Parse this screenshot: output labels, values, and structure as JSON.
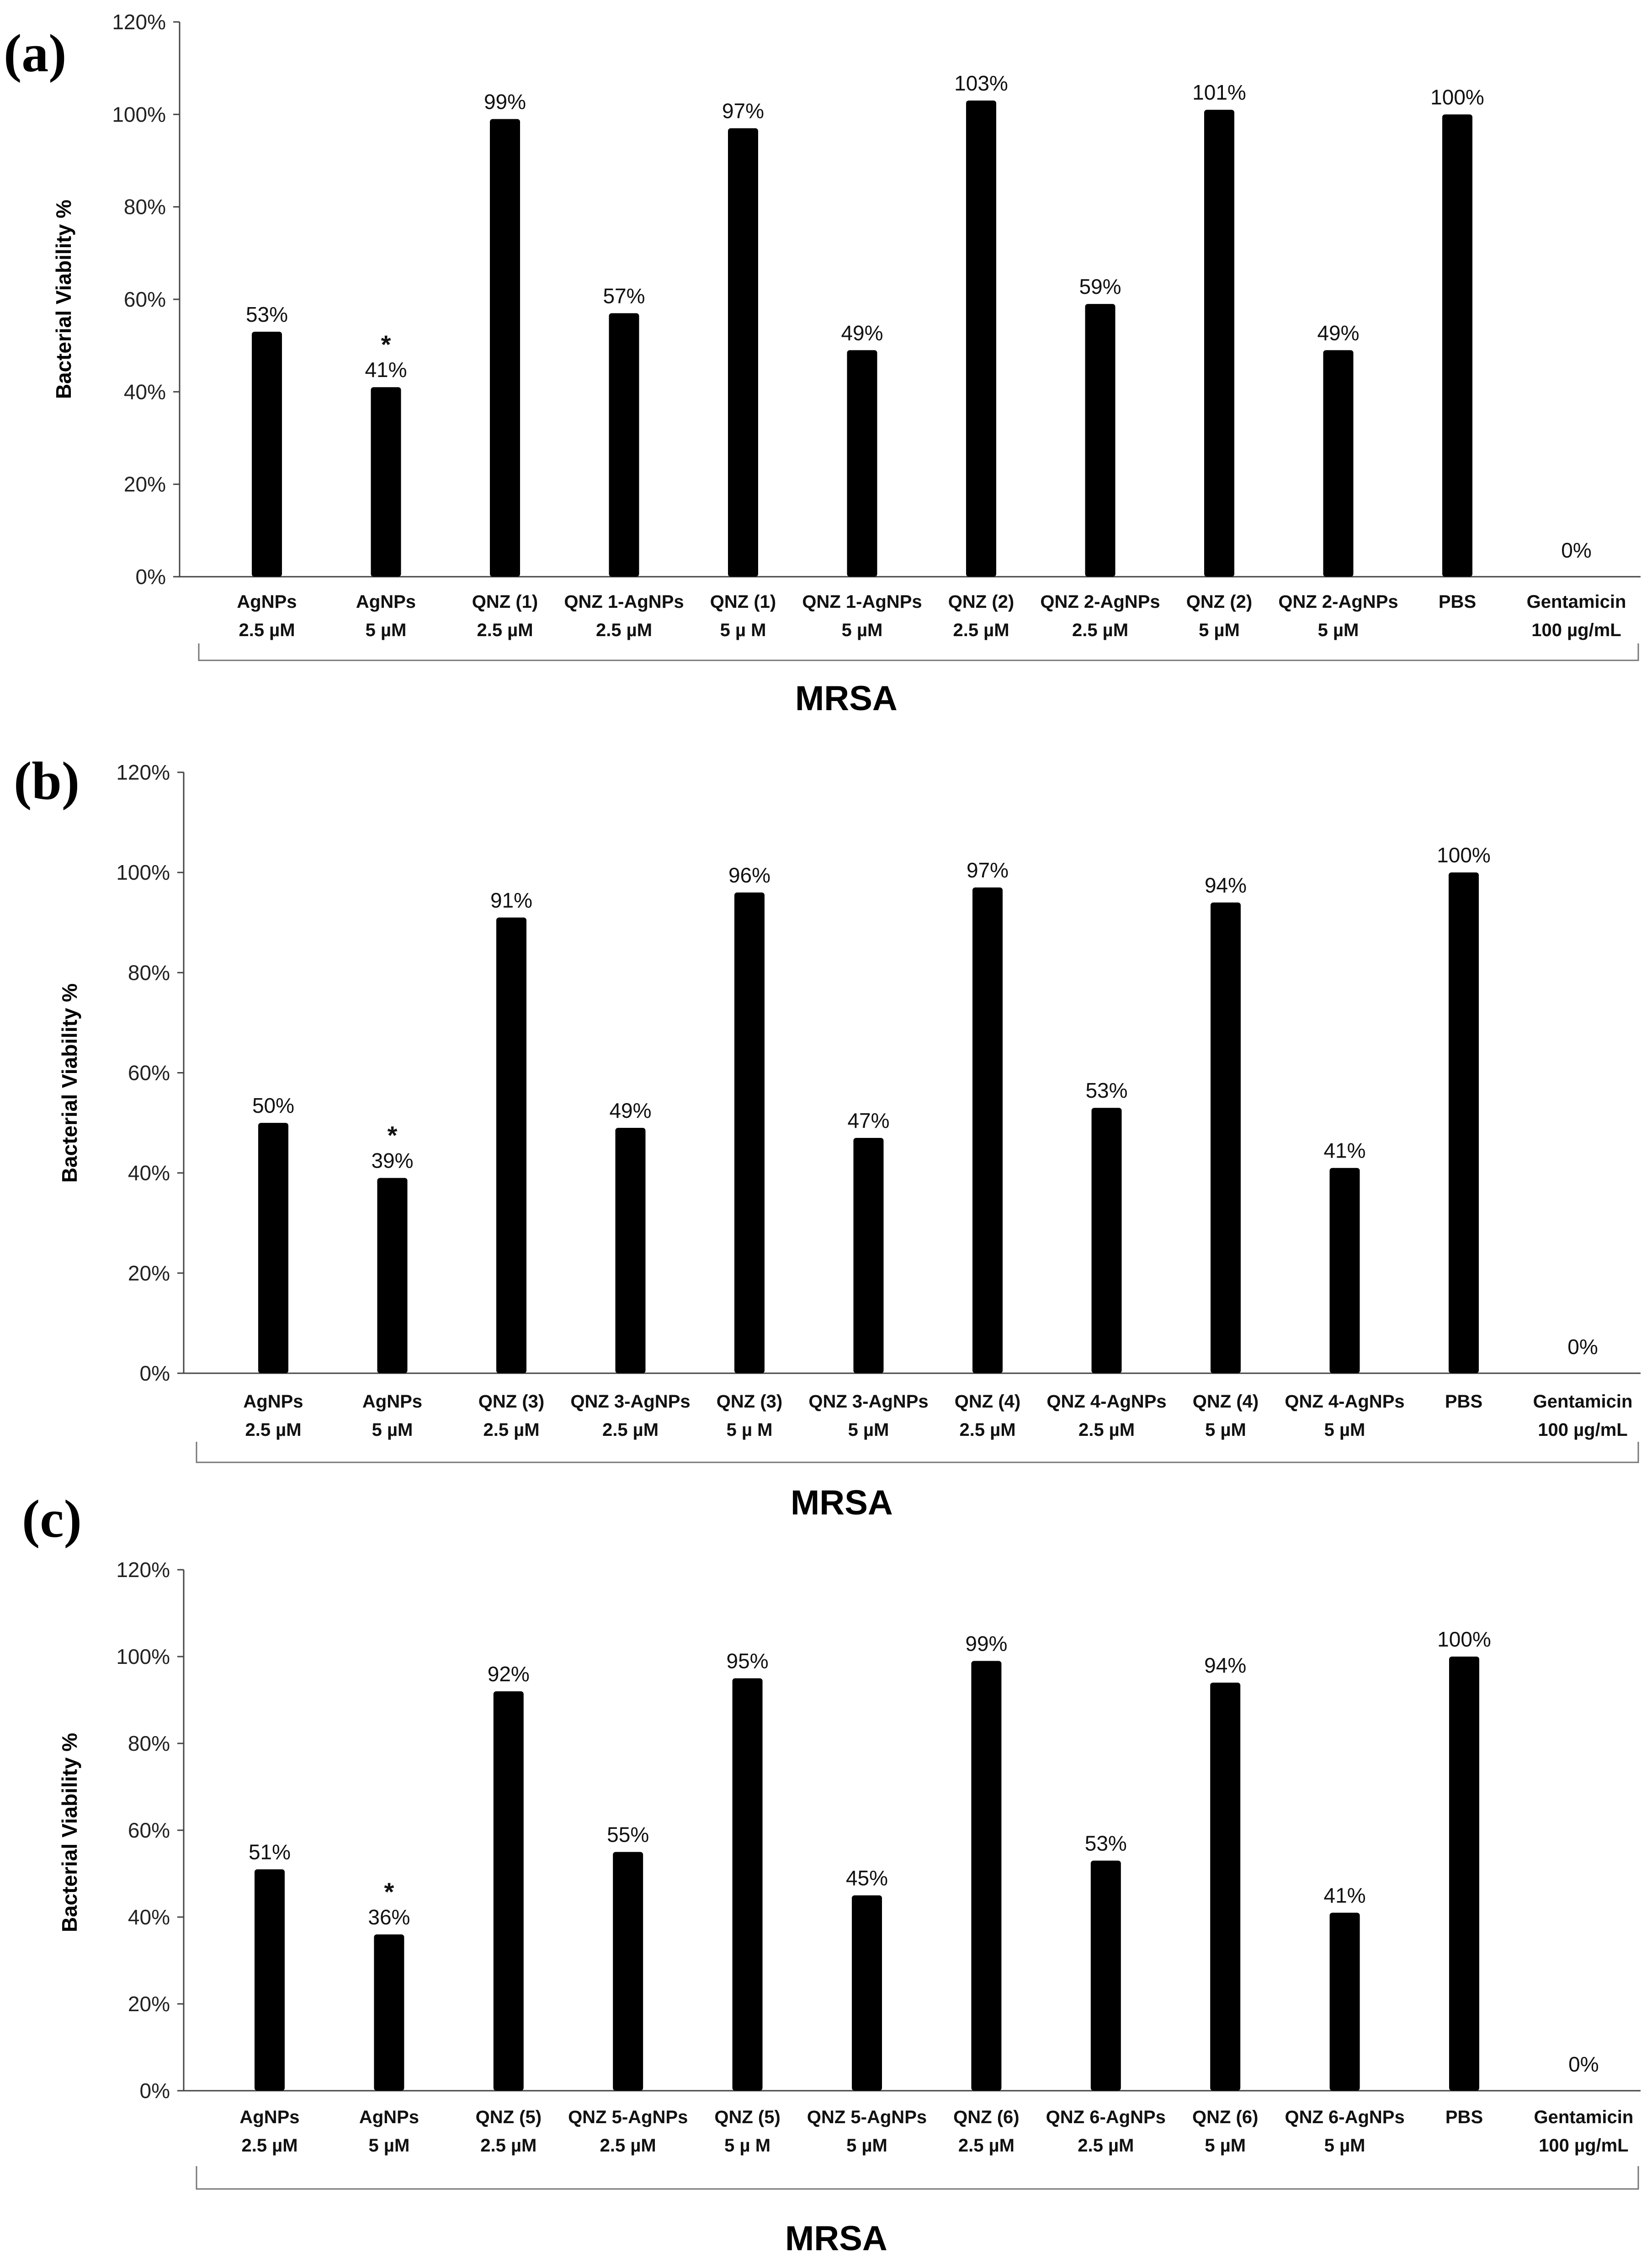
{
  "colors": {
    "bar": "#000000",
    "axis": "#444444",
    "bracket": "#777777"
  },
  "chart_data": [
    {
      "panel_label": "(a)",
      "type": "bar",
      "ylabel": "Bacterial Viability %",
      "xlabel": "MRSA",
      "ylim": [
        0,
        120
      ],
      "yticks": [
        "0%",
        "20%",
        "40%",
        "60%",
        "80%",
        "100%",
        "120%"
      ],
      "categories": [
        [
          "AgNPs",
          "2.5 µM"
        ],
        [
          "AgNPs",
          "5 µM"
        ],
        [
          "QNZ (1)",
          "2.5 µM"
        ],
        [
          "QNZ 1-AgNPs",
          "2.5 µM"
        ],
        [
          "QNZ (1)",
          "5 µ M"
        ],
        [
          "QNZ 1-AgNPs",
          "5 µM"
        ],
        [
          "QNZ (2)",
          "2.5 µM"
        ],
        [
          "QNZ 2-AgNPs",
          "2.5 µM"
        ],
        [
          "QNZ (2)",
          "5 µM"
        ],
        [
          "QNZ 2-AgNPs",
          "5 µM"
        ],
        [
          "PBS",
          ""
        ],
        [
          "Gentamicin",
          "100 µg/mL"
        ]
      ],
      "values": [
        53,
        41,
        99,
        57,
        97,
        49,
        103,
        59,
        101,
        49,
        100,
        0
      ],
      "value_labels": [
        "53%",
        "41%",
        "99%",
        "57%",
        "97%",
        "49%",
        "103%",
        "59%",
        "101%",
        "49%",
        "100%",
        "0%"
      ],
      "significance": [
        null,
        "*",
        null,
        null,
        null,
        null,
        null,
        null,
        null,
        null,
        null,
        null
      ]
    },
    {
      "panel_label": "(b)",
      "type": "bar",
      "ylabel": "Bacterial Viability %",
      "xlabel": "MRSA",
      "ylim": [
        0,
        120
      ],
      "yticks": [
        "0%",
        "20%",
        "40%",
        "60%",
        "80%",
        "100%",
        "120%"
      ],
      "categories": [
        [
          "AgNPs",
          "2.5 µM"
        ],
        [
          "AgNPs",
          "5 µM"
        ],
        [
          "QNZ (3)",
          "2.5 µM"
        ],
        [
          "QNZ 3-AgNPs",
          "2.5 µM"
        ],
        [
          "QNZ (3)",
          "5 µ M"
        ],
        [
          "QNZ 3-AgNPs",
          "5 µM"
        ],
        [
          "QNZ (4)",
          "2.5 µM"
        ],
        [
          "QNZ 4-AgNPs",
          "2.5 µM"
        ],
        [
          "QNZ (4)",
          "5 µM"
        ],
        [
          "QNZ 4-AgNPs",
          "5 µM"
        ],
        [
          "PBS",
          ""
        ],
        [
          "Gentamicin",
          "100 µg/mL"
        ]
      ],
      "values": [
        50,
        39,
        91,
        49,
        96,
        47,
        97,
        53,
        94,
        41,
        100,
        0
      ],
      "value_labels": [
        "50%",
        "39%",
        "91%",
        "49%",
        "96%",
        "47%",
        "97%",
        "53%",
        "94%",
        "41%",
        "100%",
        "0%"
      ],
      "significance": [
        null,
        "*",
        null,
        null,
        null,
        null,
        null,
        null,
        null,
        null,
        null,
        null
      ]
    },
    {
      "panel_label": "(c)",
      "type": "bar",
      "ylabel": "Bacterial Viability %",
      "xlabel": "MRSA",
      "ylim": [
        0,
        120
      ],
      "yticks": [
        "0%",
        "20%",
        "40%",
        "60%",
        "80%",
        "100%",
        "120%"
      ],
      "categories": [
        [
          "AgNPs",
          "2.5 µM"
        ],
        [
          "AgNPs",
          "5 µM"
        ],
        [
          "QNZ (5)",
          "2.5 µM"
        ],
        [
          "QNZ 5-AgNPs",
          "2.5 µM"
        ],
        [
          "QNZ (5)",
          "5 µ M"
        ],
        [
          "QNZ 5-AgNPs",
          "5 µM"
        ],
        [
          "QNZ (6)",
          "2.5 µM"
        ],
        [
          "QNZ 6-AgNPs",
          "2.5 µM"
        ],
        [
          "QNZ (6)",
          "5 µM"
        ],
        [
          "QNZ 6-AgNPs",
          "5 µM"
        ],
        [
          "PBS",
          ""
        ],
        [
          "Gentamicin",
          "100 µg/mL"
        ]
      ],
      "values": [
        51,
        36,
        92,
        55,
        95,
        45,
        99,
        53,
        94,
        41,
        100,
        0
      ],
      "value_labels": [
        "51%",
        "36%",
        "92%",
        "55%",
        "95%",
        "45%",
        "99%",
        "53%",
        "94%",
        "41%",
        "100%",
        "0%"
      ],
      "significance": [
        null,
        "*",
        null,
        null,
        null,
        null,
        null,
        null,
        null,
        null,
        null,
        null
      ]
    }
  ]
}
